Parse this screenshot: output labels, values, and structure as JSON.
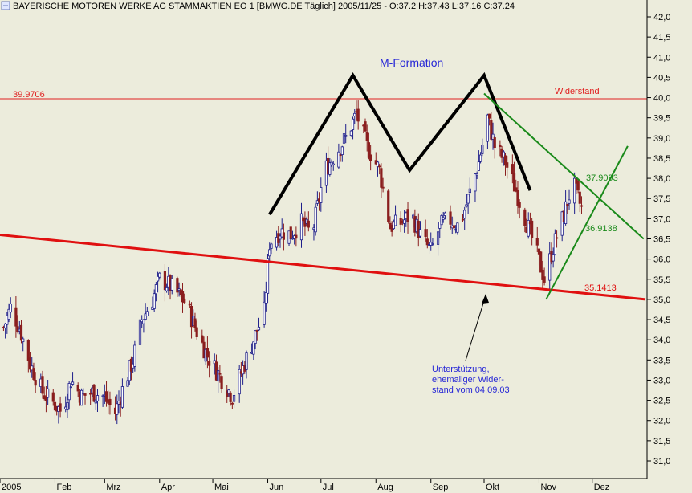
{
  "chart_data": {
    "type": "ohlc",
    "title": "BAYERISCHE MOTOREN WERKE AG STAMMAKTIEN EO 1 [BMWG.DE  Täglich] 2005/11/25 - O:37.2 H:37.43 L:37.16 C:37.24",
    "last_bar": {
      "date": "2005/11/25",
      "open": 37.2,
      "high": 37.43,
      "low": 37.16,
      "close": 37.24
    },
    "xlabel": "",
    "ylabel": "",
    "x_tick_labels": [
      "2005",
      "Feb",
      "Mrz",
      "Apr",
      "Mai",
      "Jun",
      "Jul",
      "Aug",
      "Sep",
      "Okt",
      "Nov",
      "Dez"
    ],
    "y_tick_labels": [
      "31,0",
      "31,5",
      "32,0",
      "32,5",
      "33,0",
      "33,5",
      "34,0",
      "34,5",
      "35,0",
      "35,5",
      "36,0",
      "36,5",
      "37,0",
      "37,5",
      "38,0",
      "38,5",
      "39,0",
      "39,5",
      "40,0",
      "40,5",
      "41,0",
      "41,5",
      "42,0"
    ],
    "ylim": [
      30.8,
      42.1
    ],
    "grid": false,
    "approx_close_path": [
      [
        "2005-01-03",
        34.3
      ],
      [
        "2005-01-07",
        34.8
      ],
      [
        "2005-01-12",
        34.3
      ],
      [
        "2005-01-18",
        33.4
      ],
      [
        "2005-01-25",
        32.7
      ],
      [
        "2005-02-01",
        32.4
      ],
      [
        "2005-02-05",
        32.2
      ],
      [
        "2005-02-10",
        33.0
      ],
      [
        "2005-02-16",
        32.6
      ],
      [
        "2005-02-22",
        32.7
      ],
      [
        "2005-02-28",
        32.6
      ],
      [
        "2005-03-07",
        32.2
      ],
      [
        "2005-03-12",
        32.9
      ],
      [
        "2005-03-17",
        33.5
      ],
      [
        "2005-03-22",
        34.5
      ],
      [
        "2005-03-28",
        35.0
      ],
      [
        "2005-04-01",
        35.5
      ],
      [
        "2005-04-05",
        35.4
      ],
      [
        "2005-04-10",
        35.2
      ],
      [
        "2005-04-16",
        34.9
      ],
      [
        "2005-04-22",
        34.2
      ],
      [
        "2005-04-28",
        33.6
      ],
      [
        "2005-05-05",
        33.1
      ],
      [
        "2005-05-12",
        32.6
      ],
      [
        "2005-05-18",
        33.3
      ],
      [
        "2005-05-24",
        34.0
      ],
      [
        "2005-05-30",
        34.7
      ],
      [
        "2005-06-02",
        36.4
      ],
      [
        "2005-06-08",
        36.7
      ],
      [
        "2005-06-14",
        36.6
      ],
      [
        "2005-06-20",
        36.9
      ],
      [
        "2005-06-26",
        36.6
      ],
      [
        "2005-07-03",
        38.2
      ],
      [
        "2005-07-09",
        38.6
      ],
      [
        "2005-07-15",
        39.0
      ],
      [
        "2005-07-21",
        39.6
      ],
      [
        "2005-07-27",
        38.8
      ],
      [
        "2005-08-03",
        38.2
      ],
      [
        "2005-08-09",
        36.8
      ],
      [
        "2005-08-15",
        36.9
      ],
      [
        "2005-08-21",
        37.1
      ],
      [
        "2005-08-27",
        36.5
      ],
      [
        "2005-09-01",
        36.2
      ],
      [
        "2005-09-06",
        36.8
      ],
      [
        "2005-09-11",
        37.0
      ],
      [
        "2005-09-17",
        36.8
      ],
      [
        "2005-09-22",
        37.5
      ],
      [
        "2005-09-28",
        38.4
      ],
      [
        "2005-10-03",
        39.5
      ],
      [
        "2005-10-07",
        38.8
      ],
      [
        "2005-10-13",
        38.4
      ],
      [
        "2005-10-19",
        37.7
      ],
      [
        "2005-10-25",
        36.9
      ],
      [
        "2005-10-31",
        36.1
      ],
      [
        "2005-11-04",
        35.5
      ],
      [
        "2005-11-09",
        36.3
      ],
      [
        "2005-11-15",
        37.1
      ],
      [
        "2005-11-20",
        37.9
      ],
      [
        "2005-11-25",
        37.24
      ]
    ],
    "overlays": [
      {
        "kind": "hline",
        "y": 39.9706,
        "color": "#e02020",
        "label": "39.9706",
        "note": "Widerstand"
      },
      {
        "kind": "trendline",
        "from": [
          "2005-01-01",
          36.6
        ],
        "to": [
          "2005-12-31",
          35.0
        ],
        "color": "#e01010",
        "label": "35.1413"
      },
      {
        "kind": "polyline",
        "color": "#000000",
        "points": [
          [
            "2005-06-02",
            37.1
          ],
          [
            "2005-07-19",
            40.55
          ],
          [
            "2005-08-20",
            38.2
          ],
          [
            "2005-10-01",
            40.55
          ],
          [
            "2005-10-27",
            37.7
          ]
        ]
      },
      {
        "kind": "trendline",
        "from": [
          "2005-10-01",
          40.1
        ],
        "to": [
          "2005-12-30",
          36.5
        ],
        "color": "#1a8a1a",
        "label": "37.9093"
      },
      {
        "kind": "trendline",
        "from": [
          "2005-11-05",
          35.0
        ],
        "to": [
          "2005-12-21",
          38.8
        ],
        "color": "#1a8a1a",
        "label": "36.9138"
      }
    ],
    "annotations": {
      "pattern": "M-Formation",
      "resistance": "Widerstand",
      "support_lines": [
        "Unterstützung,",
        "ehemaliger Wider-",
        "stand vom 04.09.03"
      ]
    },
    "colors": {
      "background": "#ececdc",
      "pattern_text": "#2727d6",
      "support_text": "#2727d6",
      "resistance": "#e02020",
      "trend_green": "#1a8a1a"
    }
  }
}
